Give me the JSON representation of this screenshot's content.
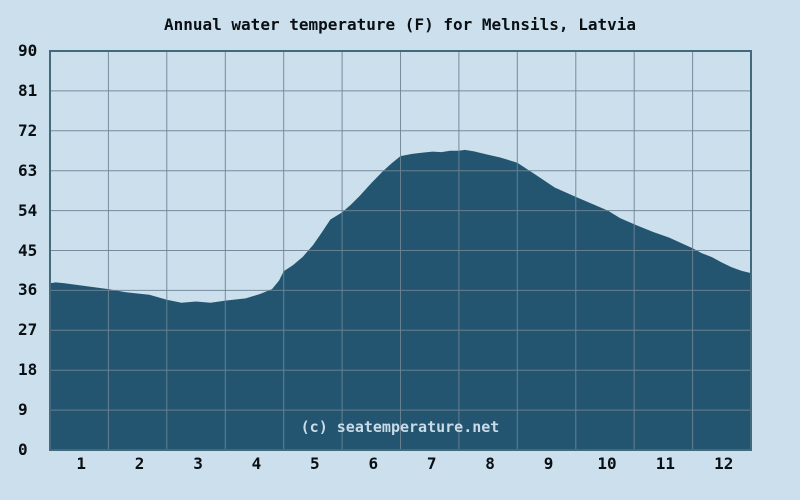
{
  "title": "Annual water temperature (F) for Melnsils, Latvia",
  "watermark": "(c) seatemperature.net",
  "colors": {
    "background": "#cbdfec",
    "area_fill": "#235571",
    "gridline": "#6d8494",
    "plot_border": "#42697c",
    "text": "#0a0f14",
    "watermark_text": "#c9dbe6"
  },
  "chart_data": {
    "type": "area",
    "title": "Annual water temperature (F) for Melnsils, Latvia",
    "xlabel": "",
    "ylabel": "",
    "unit": "F",
    "grid": true,
    "legend": false,
    "xlim_months": [
      0,
      12
    ],
    "ylim": [
      0,
      90
    ],
    "y_ticks": [
      "0",
      "9",
      "18",
      "27",
      "36",
      "45",
      "54",
      "63",
      "72",
      "81",
      "90"
    ],
    "x_ticks": [
      "1",
      "2",
      "3",
      "4",
      "5",
      "6",
      "7",
      "8",
      "9",
      "10",
      "11",
      "12"
    ],
    "series": [
      {
        "name": "Water temperature (F)",
        "points": [
          [
            0.0,
            37.6
          ],
          [
            0.1,
            37.8
          ],
          [
            0.25,
            37.6
          ],
          [
            0.6,
            37.0
          ],
          [
            1.0,
            36.3
          ],
          [
            1.3,
            35.6
          ],
          [
            1.7,
            35.0
          ],
          [
            2.0,
            33.9
          ],
          [
            2.25,
            33.2
          ],
          [
            2.5,
            33.5
          ],
          [
            2.75,
            33.2
          ],
          [
            3.0,
            33.7
          ],
          [
            3.35,
            34.2
          ],
          [
            3.6,
            35.2
          ],
          [
            3.8,
            36.3
          ],
          [
            3.92,
            38.2
          ],
          [
            4.0,
            40.3
          ],
          [
            4.16,
            41.7
          ],
          [
            4.33,
            43.6
          ],
          [
            4.5,
            46.2
          ],
          [
            4.65,
            49.0
          ],
          [
            4.8,
            52.0
          ],
          [
            5.0,
            53.6
          ],
          [
            5.15,
            55.3
          ],
          [
            5.3,
            57.3
          ],
          [
            5.5,
            60.2
          ],
          [
            5.7,
            62.9
          ],
          [
            5.85,
            64.7
          ],
          [
            6.0,
            66.3
          ],
          [
            6.2,
            66.8
          ],
          [
            6.4,
            67.1
          ],
          [
            6.55,
            67.3
          ],
          [
            6.7,
            67.2
          ],
          [
            6.85,
            67.5
          ],
          [
            7.0,
            67.5
          ],
          [
            7.1,
            67.7
          ],
          [
            7.25,
            67.4
          ],
          [
            7.5,
            66.6
          ],
          [
            7.7,
            66.0
          ],
          [
            8.0,
            64.8
          ],
          [
            8.3,
            62.2
          ],
          [
            8.64,
            59.2
          ],
          [
            9.0,
            57.1
          ],
          [
            9.25,
            55.7
          ],
          [
            9.55,
            54.0
          ],
          [
            9.76,
            52.3
          ],
          [
            10.0,
            50.9
          ],
          [
            10.32,
            49.2
          ],
          [
            10.6,
            47.9
          ],
          [
            11.0,
            45.5
          ],
          [
            11.16,
            44.4
          ],
          [
            11.33,
            43.5
          ],
          [
            11.5,
            42.3
          ],
          [
            11.67,
            41.2
          ],
          [
            11.84,
            40.4
          ],
          [
            12.0,
            39.9
          ]
        ]
      }
    ]
  }
}
